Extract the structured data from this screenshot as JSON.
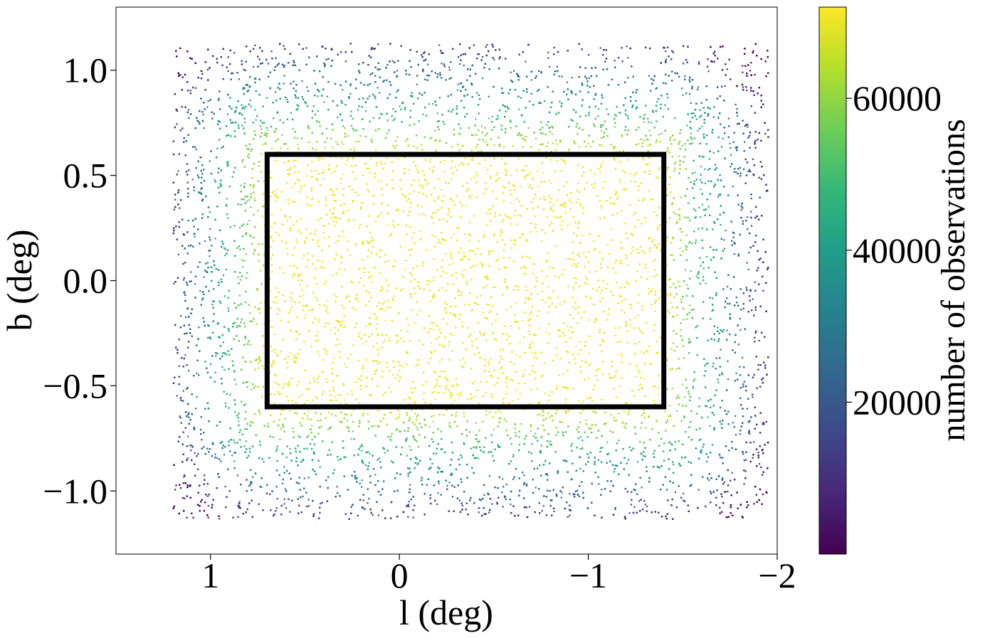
{
  "chart_data": {
    "type": "scatter",
    "title": "",
    "xlabel": "l (deg)",
    "ylabel": "b (deg)",
    "xlim": [
      1.5,
      -2.0
    ],
    "ylim": [
      -1.3,
      1.3
    ],
    "x_ticks": [
      1,
      0,
      -1,
      -2
    ],
    "x_tick_labels": [
      "1",
      "0",
      "−1",
      "−2"
    ],
    "y_ticks": [
      1.0,
      0.5,
      0.0,
      -0.5,
      -1.0
    ],
    "y_tick_labels": [
      "1.0",
      "0.5",
      "0.0",
      "−0.5",
      "−1.0"
    ],
    "grid": false,
    "point_extent": {
      "l": [
        1.2,
        -1.95
      ],
      "b": [
        -1.13,
        1.13
      ]
    },
    "highlight_box": {
      "l": [
        0.7,
        -1.4
      ],
      "b": [
        -0.6,
        0.6
      ],
      "color": "#000000"
    },
    "colorbar": {
      "label": "number of observations",
      "colormap": "viridis",
      "range": [
        0,
        72000
      ],
      "ticks": [
        20000,
        40000,
        60000
      ],
      "tick_labels": [
        "20000",
        "40000",
        "60000"
      ],
      "colors": [
        "#440154",
        "#482878",
        "#3e4989",
        "#31688e",
        "#26828e",
        "#1f9e89",
        "#35b779",
        "#6ece58",
        "#b5de2b",
        "#fde725"
      ]
    }
  }
}
